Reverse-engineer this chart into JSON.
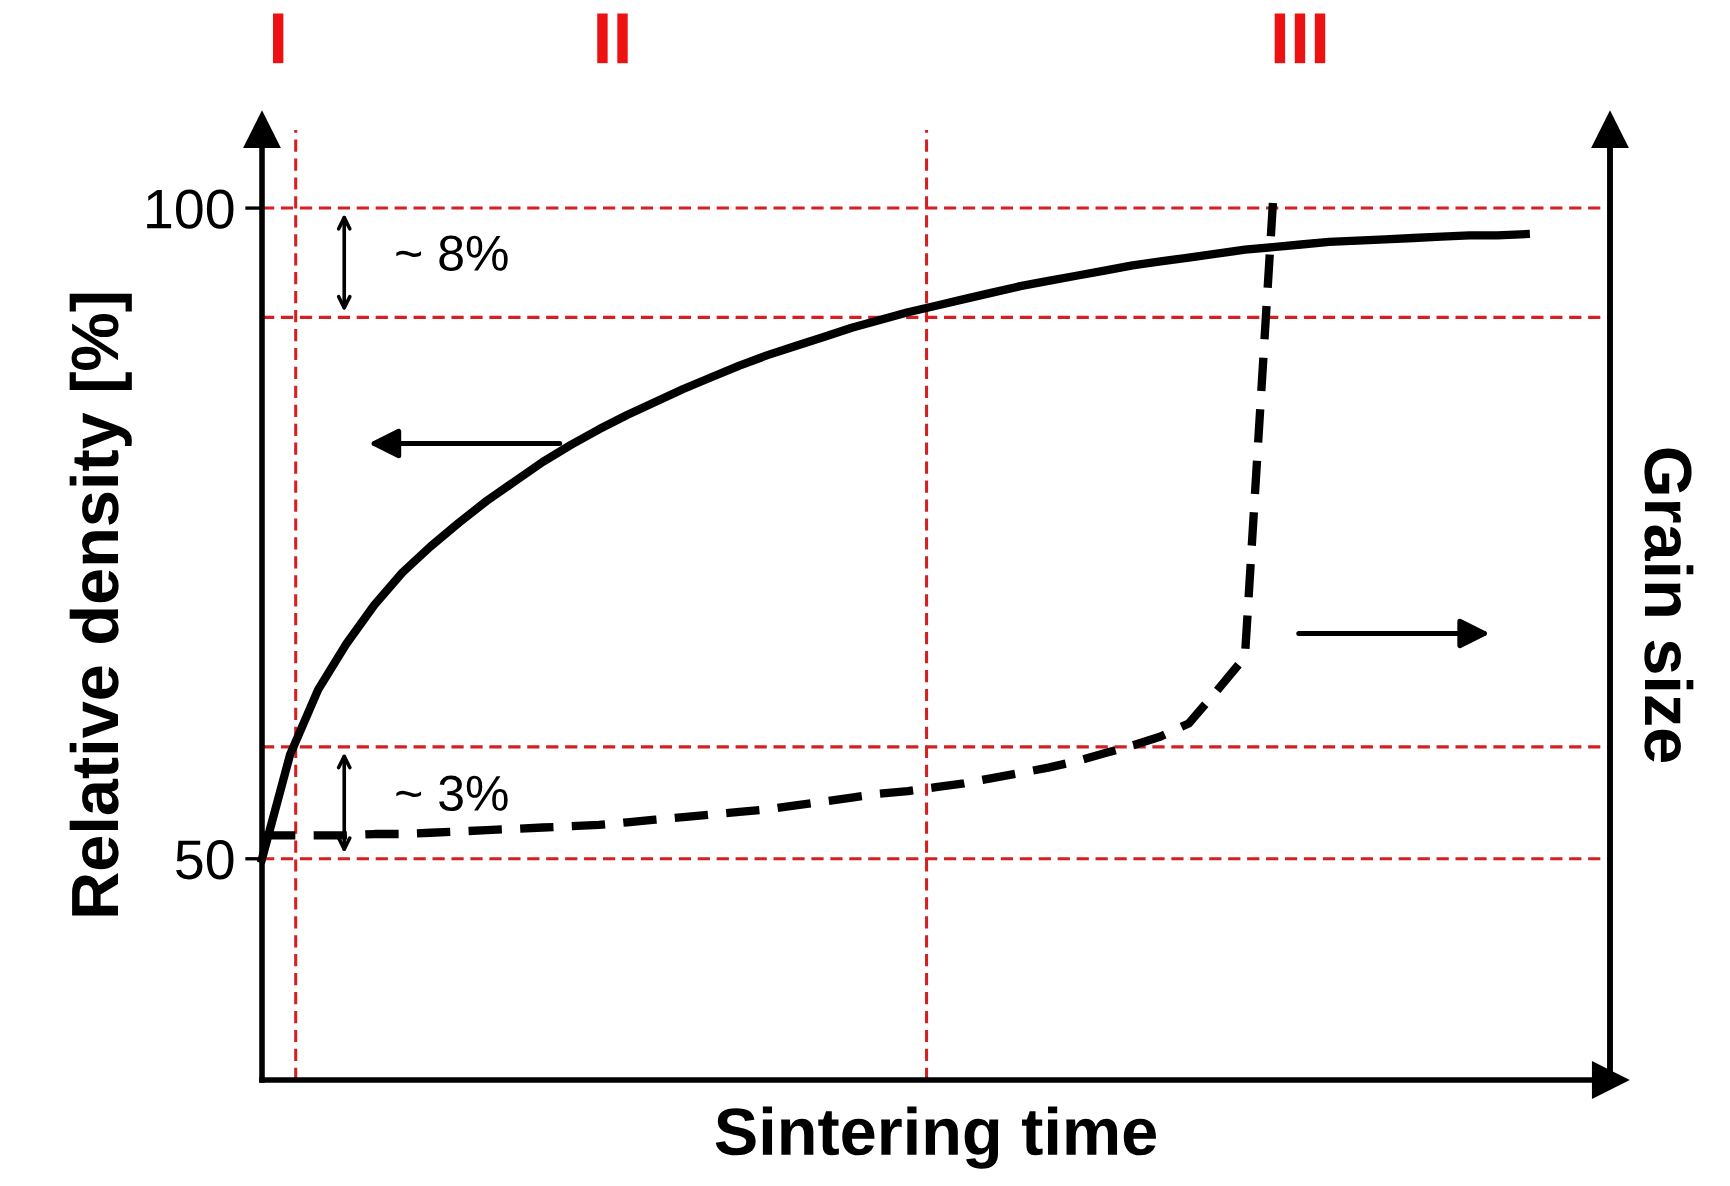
{
  "chart_data": {
    "type": "line",
    "xlabel": "Sintering time",
    "ylabel": "Relative density [%]",
    "y2label": "Grain size",
    "categories": [
      null,
      null,
      null,
      null,
      null,
      null,
      null,
      null,
      null,
      null,
      null,
      null,
      null,
      null,
      null,
      null,
      null,
      null,
      null,
      null,
      null,
      null,
      null,
      null,
      null,
      null,
      null,
      null,
      null,
      null,
      null,
      null,
      null,
      null,
      null,
      null,
      null,
      null,
      null,
      null,
      null,
      null,
      null,
      null,
      null,
      null,
      null,
      null,
      null
    ],
    "ylim": [
      33,
      106
    ],
    "yticks": [
      50,
      100
    ],
    "grid": false,
    "marker": "none",
    "series": [
      {
        "color": "#000000",
        "line_style": "solid",
        "values": [
          50,
          58,
          63,
          66.5,
          69.5,
          72,
          74,
          75.8,
          77.5,
          79,
          80.5,
          81.8,
          83,
          84.1,
          85.1,
          86.1,
          87,
          87.9,
          88.7,
          89.4,
          90.1,
          90.8,
          91.4,
          92,
          92.5,
          93,
          93.5,
          94,
          94.4,
          94.8,
          95.2,
          95.6,
          95.9,
          96.2,
          96.5,
          96.8,
          97,
          97.2,
          97.4,
          97.5,
          97.6,
          97.7,
          97.8,
          97.9,
          97.9,
          98,
          null,
          null,
          null
        ]
      },
      {
        "color": "#000000",
        "line_style": "dashed",
        "values": [
          51.8,
          51.8,
          51.8,
          51.8,
          51.9,
          51.9,
          52,
          52.1,
          52.2,
          52.3,
          52.4,
          52.5,
          52.6,
          52.8,
          53,
          53.2,
          53.4,
          53.6,
          53.8,
          54.1,
          54.4,
          54.7,
          55,
          55.2,
          55.5,
          55.8,
          56.2,
          56.6,
          57,
          57.5,
          58.1,
          58.7,
          59.4,
          60.4,
          62.9,
          65.5,
          100.5,
          null,
          null,
          null,
          null,
          null,
          null,
          null,
          null,
          null,
          null,
          null,
          null
        ]
      }
    ],
    "ref_lines": [
      {
        "axis": "y",
        "value": 100,
        "color": "#d42020",
        "line_style": "dashed"
      },
      {
        "axis": "y",
        "value": 91.6,
        "color": "#d42020",
        "line_style": "dashed"
      },
      {
        "axis": "y",
        "value": 58.6,
        "color": "#d42020",
        "line_style": "dashed"
      },
      {
        "axis": "y",
        "value": 50,
        "color": "#d42020",
        "line_style": "dashed"
      }
    ],
    "annotations": [
      "I",
      "II",
      "III",
      "~ 8%",
      "~ 3%"
    ]
  }
}
